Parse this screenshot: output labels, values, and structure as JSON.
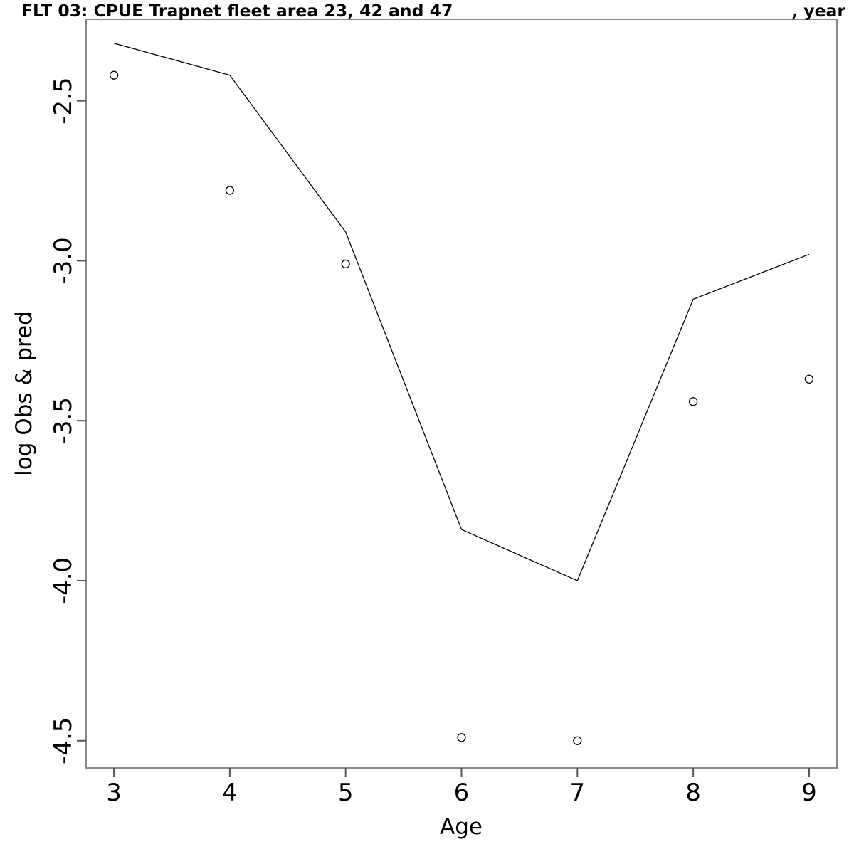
{
  "header": {
    "title_left": "FLT 03: CPUE Trapnet fleet area 23, 42 and 47",
    "title_right": ", year"
  },
  "chart_data": {
    "type": "line",
    "title": "FLT 03: CPUE Trapnet fleet area 23, 42 and 47",
    "title_right": ", year",
    "xlabel": "Age",
    "ylabel": "log Obs & pred",
    "x": [
      3,
      4,
      5,
      6,
      7,
      8,
      9
    ],
    "series": [
      {
        "name": "predicted",
        "style": "line",
        "color": "#000000",
        "values": [
          -2.32,
          -2.42,
          -2.91,
          -3.84,
          -4.0,
          -3.12,
          -2.98
        ]
      },
      {
        "name": "observed",
        "style": "scatter",
        "marker": "open-circle",
        "color": "#000000",
        "values": [
          -2.42,
          -2.78,
          -3.01,
          -4.49,
          -4.5,
          -3.44,
          -3.37
        ]
      }
    ],
    "x_ticks": [
      3,
      4,
      5,
      6,
      7,
      8,
      9
    ],
    "y_ticks": [
      -2.5,
      -3.0,
      -3.5,
      -4.0,
      -4.5
    ],
    "xlim": [
      2.76,
      9.24
    ],
    "ylim": [
      -4.585,
      -2.245
    ],
    "grid": false,
    "legend": false,
    "frame_color": "#888888",
    "text_color": "#000000",
    "background": "#ffffff"
  }
}
